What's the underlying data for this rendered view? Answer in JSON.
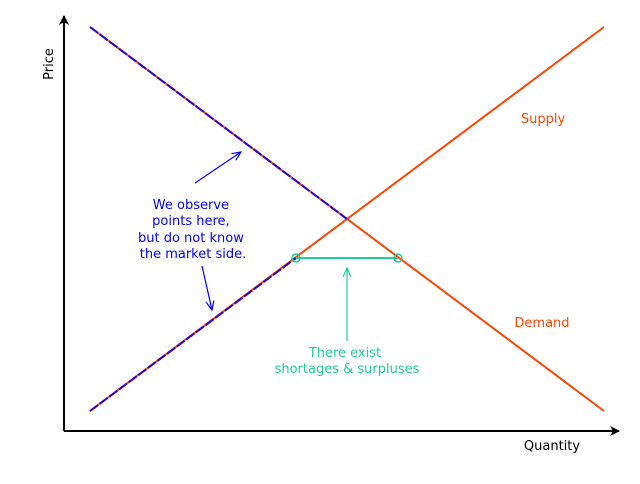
{
  "axes": {
    "xlabel": "Quantity",
    "ylabel": "Price"
  },
  "curves": {
    "supply_label": "Supply",
    "demand_label": "Demand"
  },
  "annotations": {
    "observe_lines": [
      "We observe",
      "points here,",
      "but do not know",
      "the market side."
    ],
    "gap_lines": [
      "There exist",
      "shortages & surpluses"
    ]
  },
  "colors": {
    "curve": "#ff4500",
    "observed": "#2a00d5",
    "annotation_blue": "#0000ff",
    "gap": "#1fcc9c",
    "axis": "#000000"
  }
}
